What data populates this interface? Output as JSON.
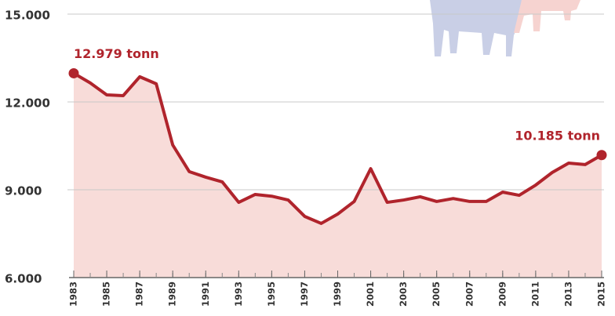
{
  "chart_data": {
    "type": "area",
    "x": [
      1983,
      1984,
      1985,
      1986,
      1987,
      1988,
      1989,
      1990,
      1991,
      1992,
      1993,
      1994,
      1995,
      1996,
      1997,
      1998,
      1999,
      2000,
      2001,
      2002,
      2003,
      2004,
      2005,
      2006,
      2007,
      2008,
      2009,
      2010,
      2011,
      2012,
      2013,
      2014,
      2015
    ],
    "values": [
      12979,
      12650,
      12240,
      12215,
      12860,
      12620,
      10530,
      9620,
      9430,
      9270,
      8570,
      8840,
      8780,
      8650,
      8090,
      7850,
      8170,
      8600,
      9720,
      8570,
      8650,
      8760,
      8600,
      8700,
      8600,
      8600,
      8920,
      8810,
      9160,
      9590,
      9910,
      9860,
      10185
    ],
    "value_labels": [
      "12.979 tonn",
      null,
      null,
      null,
      null,
      null,
      null,
      null,
      null,
      null,
      null,
      null,
      null,
      null,
      null,
      null,
      null,
      null,
      null,
      null,
      null,
      null,
      null,
      null,
      null,
      null,
      null,
      null,
      null,
      null,
      null,
      null,
      "10.185 tonn"
    ],
    "color": "#b0242c",
    "fill": "#f8dcd9",
    "xlim": [
      1983,
      2015
    ],
    "xticks": [
      1983,
      1985,
      1987,
      1989,
      1991,
      1993,
      1995,
      1997,
      1999,
      2001,
      2003,
      2005,
      2007,
      2009,
      2011,
      2013,
      2015
    ],
    "ylim": [
      6000,
      15000
    ],
    "yticks": [
      {
        "value": 6000,
        "label": "6.000"
      },
      {
        "value": 9000,
        "label": "9.000"
      },
      {
        "value": 12000,
        "label": "12.000"
      },
      {
        "value": 15000,
        "label": "15.000"
      }
    ],
    "grid": true
  }
}
